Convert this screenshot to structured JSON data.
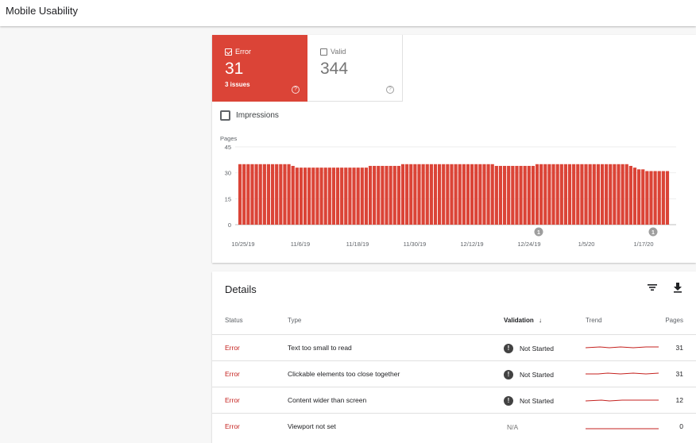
{
  "header": {
    "title": "Mobile Usability"
  },
  "summary": {
    "error": {
      "label": "Error",
      "count": "31",
      "issues": "3 issues",
      "help": "?",
      "color": "#db4437"
    },
    "valid": {
      "label": "Valid",
      "count": "344",
      "help": "?"
    }
  },
  "impressions_label": "Impressions",
  "chart_data": {
    "type": "bar",
    "ylabel": "Pages",
    "ylim": [
      0,
      45
    ],
    "yticks": [
      "0",
      "15",
      "30",
      "45"
    ],
    "x_tick_labels": [
      "10/25/19",
      "11/6/19",
      "11/18/19",
      "11/30/19",
      "12/12/19",
      "12/24/19",
      "1/5/20",
      "1/17/20"
    ],
    "series": [
      {
        "color": "#db4437",
        "values": [
          35,
          35,
          35,
          35,
          35,
          35,
          35,
          35,
          35,
          35,
          35,
          35,
          35,
          34,
          33,
          33,
          33,
          33,
          33,
          33,
          33,
          33,
          33,
          33,
          33,
          33,
          33,
          33,
          33,
          33,
          33,
          33,
          34,
          34,
          34,
          34,
          34,
          34,
          34,
          34,
          35,
          35,
          35,
          35,
          35,
          35,
          35,
          35,
          35,
          35,
          35,
          35,
          35,
          35,
          35,
          35,
          35,
          35,
          35,
          35,
          35,
          35,
          35,
          34,
          34,
          34,
          34,
          34,
          34,
          34,
          34,
          34,
          34,
          35,
          35,
          35,
          35,
          35,
          35,
          35,
          35,
          35,
          35,
          35,
          35,
          35,
          35,
          35,
          35,
          35,
          35,
          35,
          35,
          35,
          35,
          35,
          34,
          33,
          32,
          32,
          31,
          31,
          31,
          31,
          31,
          31
        ]
      }
    ],
    "annotations": [
      {
        "x": "12/24/19",
        "label": "1"
      },
      {
        "x": "1/17/20",
        "label": "1"
      }
    ]
  },
  "details": {
    "title": "Details",
    "columns": {
      "status": "Status",
      "type": "Type",
      "validation": "Validation",
      "sort_arrow": "↓",
      "trend": "Trend",
      "pages": "Pages"
    },
    "rows": [
      {
        "status": "Error",
        "type": "Text too small to read",
        "validation": "Not Started",
        "pages": "31"
      },
      {
        "status": "Error",
        "type": "Clickable elements too close together",
        "validation": "Not Started",
        "pages": "31"
      },
      {
        "status": "Error",
        "type": "Content wider than screen",
        "validation": "Not Started",
        "pages": "12"
      },
      {
        "status": "Error",
        "type": "Viewport not set",
        "validation": "N/A",
        "pages": "0"
      }
    ],
    "trend_color": "#c5221f"
  }
}
